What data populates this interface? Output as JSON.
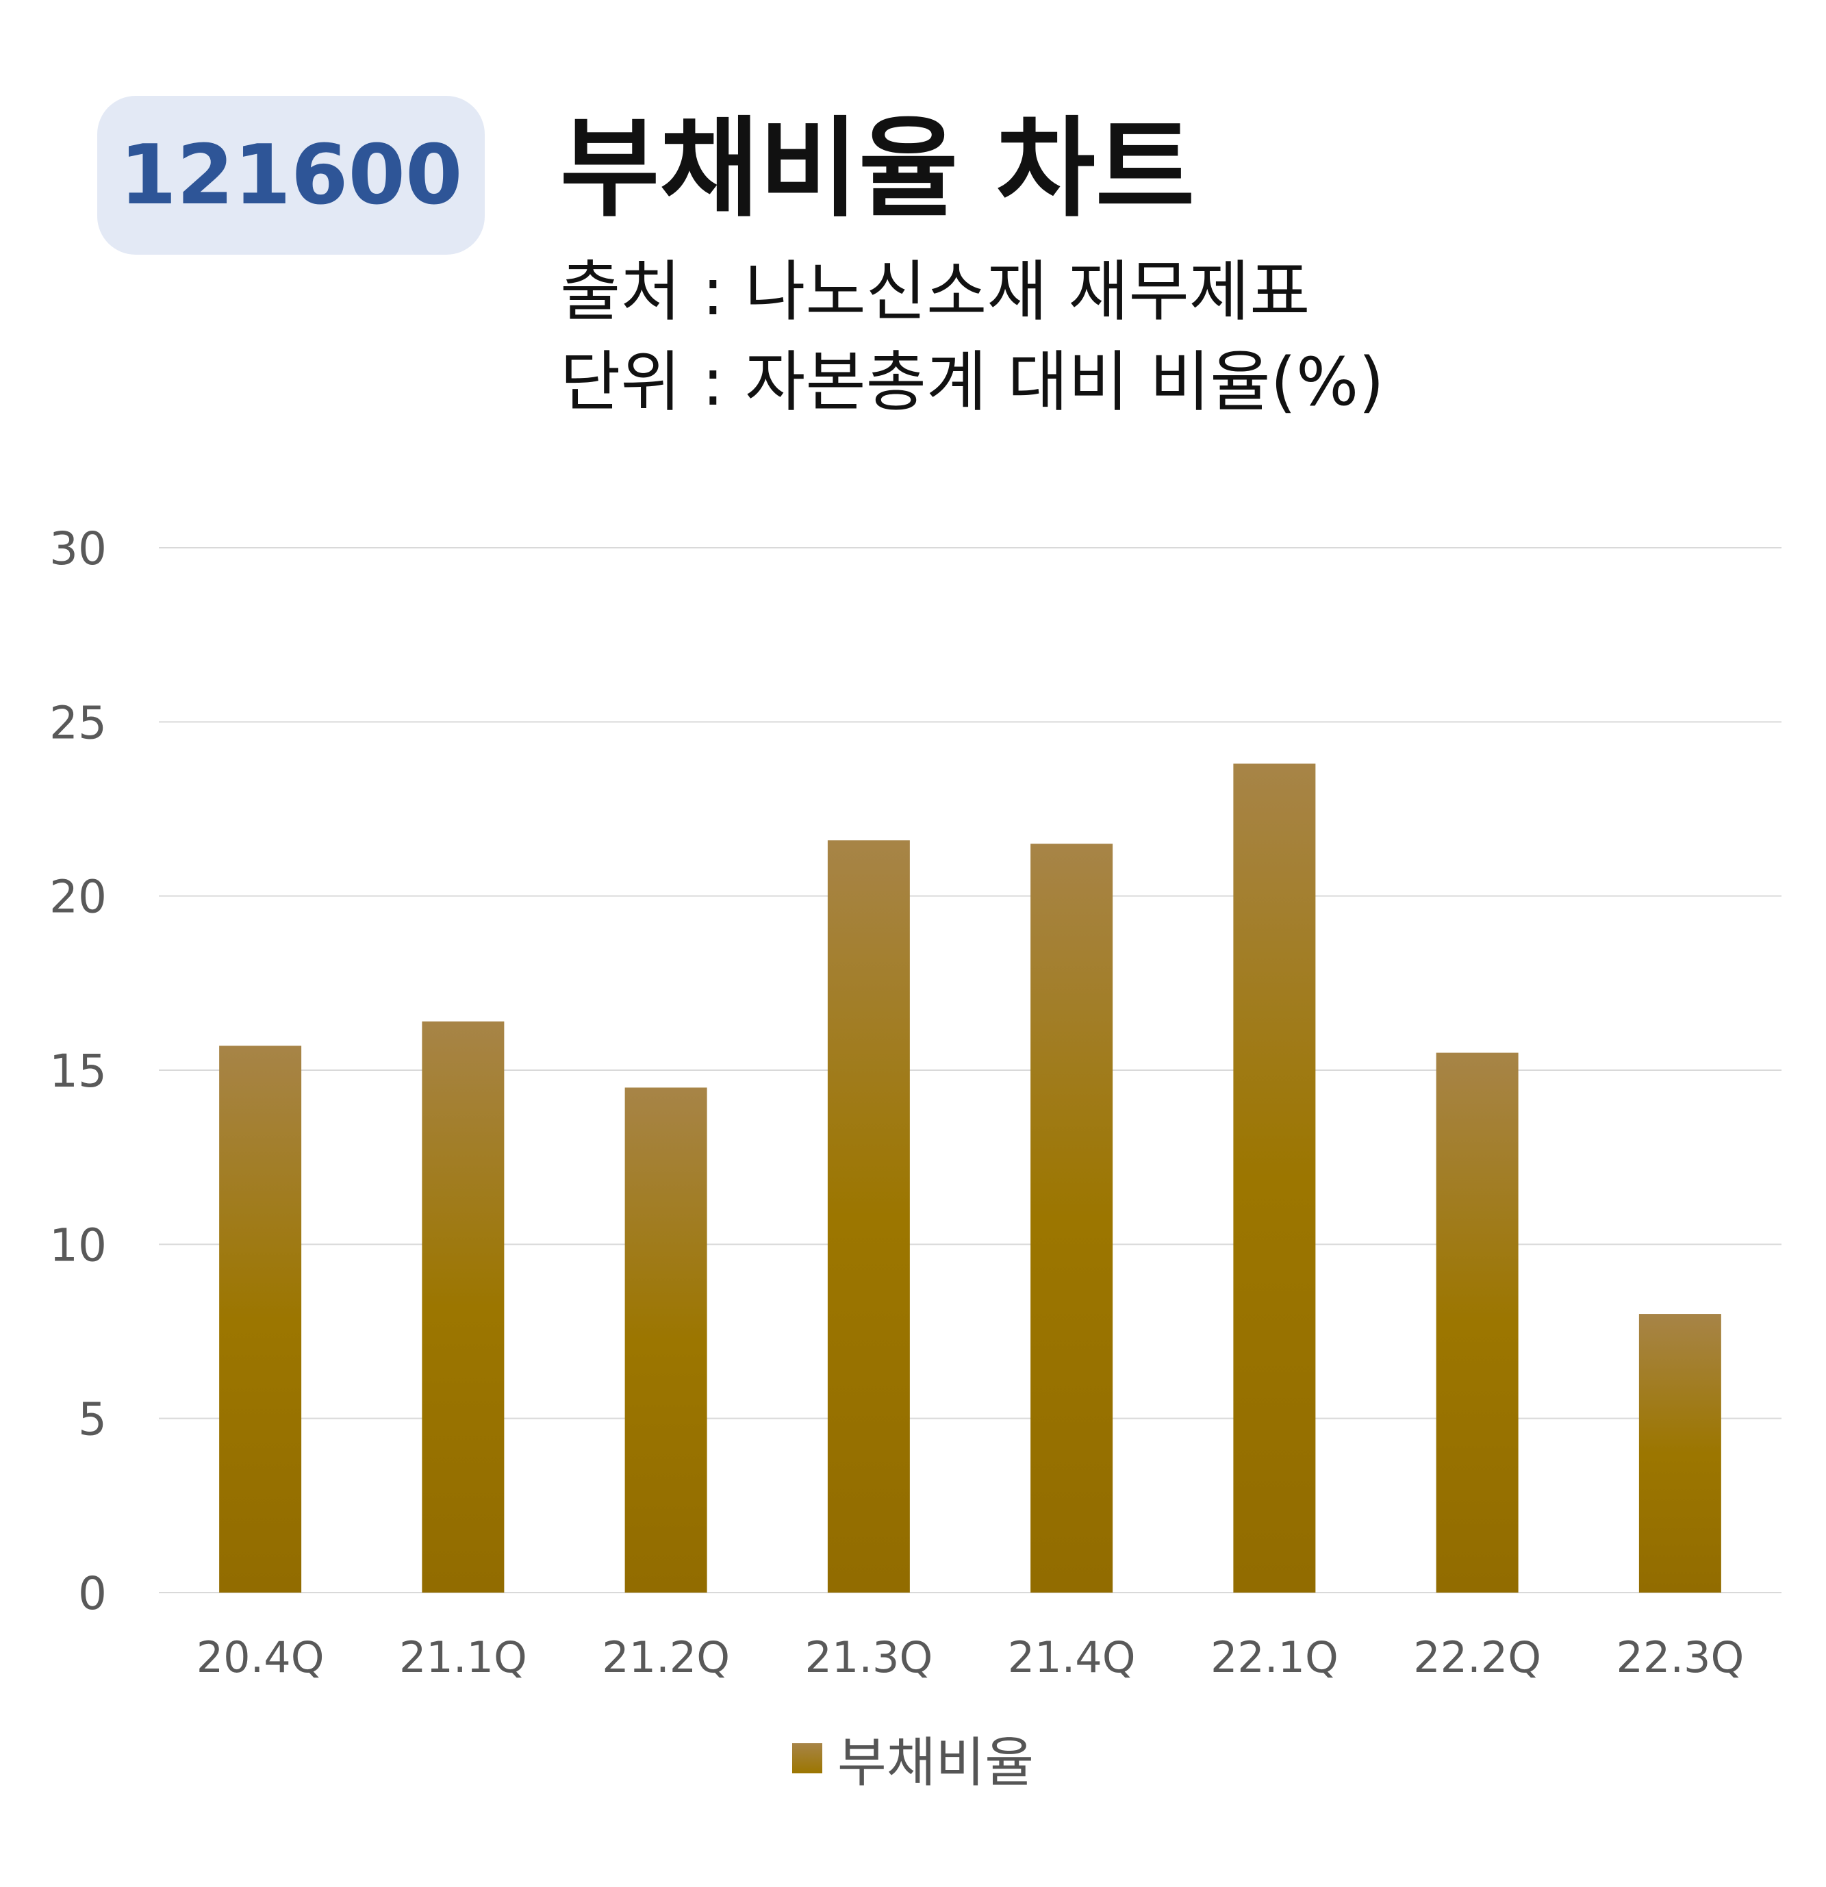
{
  "header": {
    "code": "121600",
    "title": "부채비율 차트",
    "source_line": "출처 : 나노신소재 재무제표",
    "unit_line": "단위 : 자본총계 대비 비율(%)"
  },
  "colors": {
    "bar_top": "#a78447",
    "bar_bottom": "#926c00",
    "badge_bg": "#e3e9f5",
    "badge_text": "#2e5597",
    "grid": "#d9d9d9",
    "axis_text": "#595959"
  },
  "chart_data": {
    "type": "bar",
    "categories": [
      "20.4Q",
      "21.1Q",
      "21.2Q",
      "21.3Q",
      "21.4Q",
      "22.1Q",
      "22.2Q",
      "22.3Q"
    ],
    "series": [
      {
        "name": "부채비율",
        "values": [
          15.7,
          16.4,
          14.5,
          21.6,
          21.5,
          23.8,
          15.5,
          8.0
        ]
      }
    ],
    "ylim": [
      0,
      30
    ],
    "yticks": [
      0,
      5,
      10,
      15,
      20,
      25,
      30
    ],
    "grid": true,
    "legend": "bottom"
  }
}
